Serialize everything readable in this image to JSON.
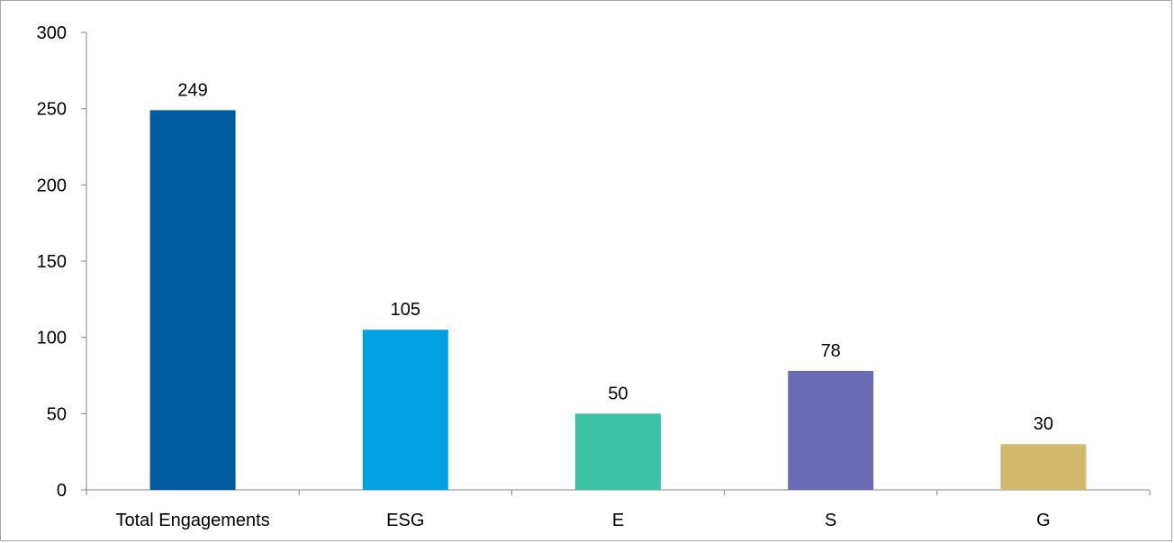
{
  "chart_data": {
    "type": "bar",
    "title": "",
    "xlabel": "",
    "ylabel": "",
    "categories": [
      "Total Engagements",
      "ESG",
      "E",
      "S",
      "G"
    ],
    "values": [
      249,
      105,
      50,
      78,
      30
    ],
    "data_labels": [
      "249",
      "105",
      "50",
      "78",
      "30"
    ],
    "colors": [
      "#005aa0",
      "#00a0e1",
      "#3cc3a5",
      "#6a6bb4",
      "#d2b96e"
    ],
    "ylim": [
      0,
      300
    ],
    "yticks": [
      0,
      50,
      100,
      150,
      200,
      250,
      300
    ],
    "ytick_labels": [
      "0",
      "50",
      "100",
      "150",
      "200",
      "250",
      "300"
    ],
    "grid": false,
    "legend": "none"
  }
}
